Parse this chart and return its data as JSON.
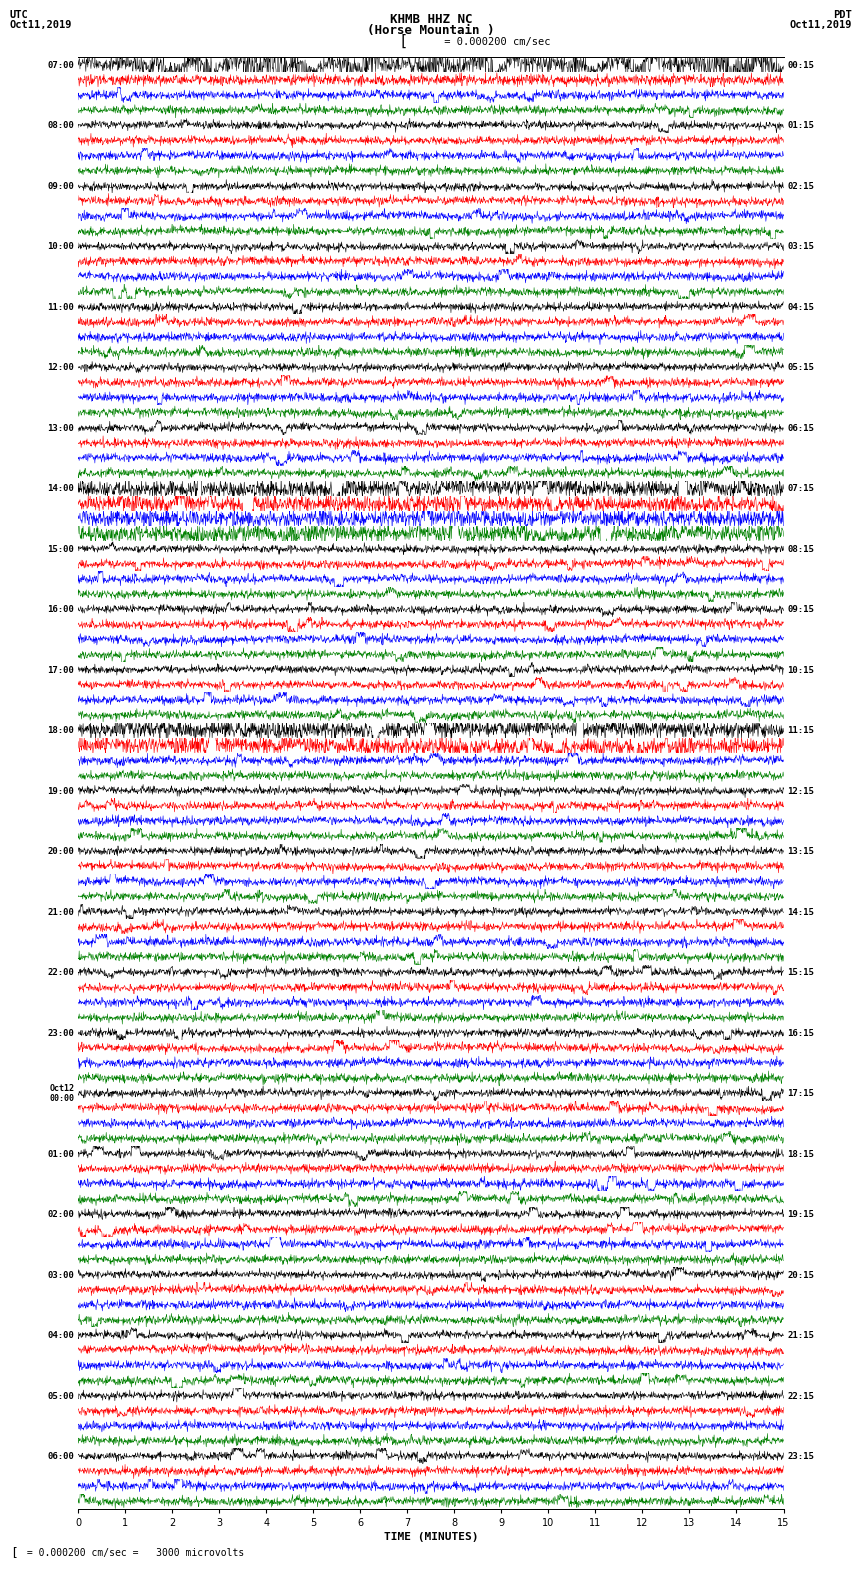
{
  "title_line1": "KHMB HHZ NC",
  "title_line2": "(Horse Mountain )",
  "scale_label": "= 0.000200 cm/sec",
  "bottom_label": "= 0.000200 cm/sec =   3000 microvolts",
  "xlabel": "TIME (MINUTES)",
  "bg_color": "#ffffff",
  "colors": [
    "black",
    "red",
    "blue",
    "green"
  ],
  "n_rows": 96,
  "left_times": [
    "07:00",
    "",
    "",
    "",
    "08:00",
    "",
    "",
    "",
    "09:00",
    "",
    "",
    "",
    "10:00",
    "",
    "",
    "",
    "11:00",
    "",
    "",
    "",
    "12:00",
    "",
    "",
    "",
    "13:00",
    "",
    "",
    "",
    "14:00",
    "",
    "",
    "",
    "15:00",
    "",
    "",
    "",
    "16:00",
    "",
    "",
    "",
    "17:00",
    "",
    "",
    "",
    "18:00",
    "",
    "",
    "",
    "19:00",
    "",
    "",
    "",
    "20:00",
    "",
    "",
    "",
    "21:00",
    "",
    "",
    "",
    "22:00",
    "",
    "",
    "",
    "23:00",
    "",
    "",
    "",
    "Oct12\n00:00",
    "",
    "",
    "",
    "01:00",
    "",
    "",
    "",
    "02:00",
    "",
    "",
    "",
    "03:00",
    "",
    "",
    "",
    "04:00",
    "",
    "",
    "",
    "05:00",
    "",
    "",
    "",
    "06:00",
    "",
    "",
    ""
  ],
  "right_times": [
    "00:15",
    "",
    "",
    "",
    "01:15",
    "",
    "",
    "",
    "02:15",
    "",
    "",
    "",
    "03:15",
    "",
    "",
    "",
    "04:15",
    "",
    "",
    "",
    "05:15",
    "",
    "",
    "",
    "06:15",
    "",
    "",
    "",
    "07:15",
    "",
    "",
    "",
    "08:15",
    "",
    "",
    "",
    "09:15",
    "",
    "",
    "",
    "10:15",
    "",
    "",
    "",
    "11:15",
    "",
    "",
    "",
    "12:15",
    "",
    "",
    "",
    "13:15",
    "",
    "",
    "",
    "14:15",
    "",
    "",
    "",
    "15:15",
    "",
    "",
    "",
    "16:15",
    "",
    "",
    "",
    "17:15",
    "",
    "",
    "",
    "18:15",
    "",
    "",
    "",
    "19:15",
    "",
    "",
    "",
    "20:15",
    "",
    "",
    "",
    "21:15",
    "",
    "",
    "",
    "22:15",
    "",
    "",
    "",
    "23:15",
    "",
    "",
    ""
  ]
}
